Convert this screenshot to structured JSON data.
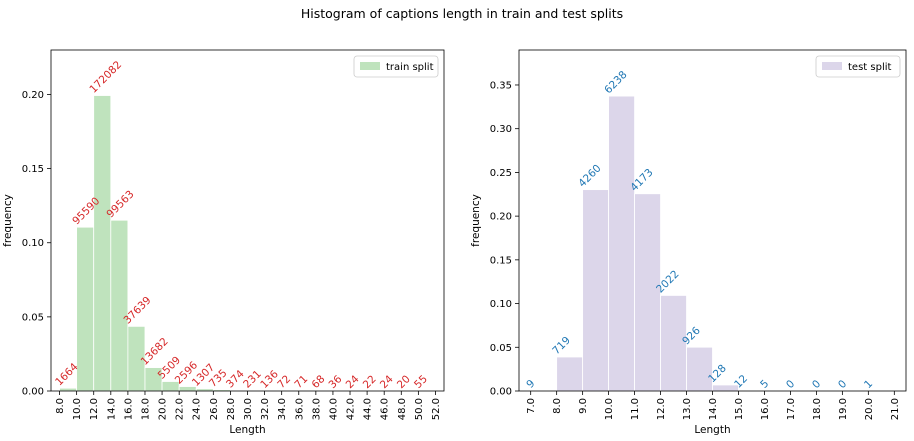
{
  "figure": {
    "title": "Histogram of captions length in train and test splits"
  },
  "chart_data": [
    {
      "type": "bar",
      "title": "",
      "xlabel": "Length",
      "ylabel": "frequency",
      "legend": {
        "label": "train split",
        "placement": "top-right"
      },
      "bar_color": "#bfe3bd",
      "label_color": "#d62728",
      "xlim": [
        7.0,
        53.0
      ],
      "ylim": [
        0,
        0.23
      ],
      "yticks": [
        0.0,
        0.05,
        0.1,
        0.15,
        0.2
      ],
      "ytick_labels": [
        "0.00",
        "0.05",
        "0.10",
        "0.15",
        "0.20"
      ],
      "xticks": [
        8,
        10,
        12,
        14,
        16,
        18,
        20,
        22,
        24,
        26,
        28,
        30,
        32,
        34,
        36,
        38,
        40,
        42,
        44,
        46,
        48,
        50,
        52
      ],
      "xtick_labels": [
        "8.0",
        "10.0",
        "12.0",
        "14.0",
        "16.0",
        "18.0",
        "20.0",
        "22.0",
        "24.0",
        "26.0",
        "28.0",
        "30.0",
        "32.0",
        "34.0",
        "36.0",
        "38.0",
        "40.0",
        "42.0",
        "44.0",
        "46.0",
        "48.0",
        "50.0",
        "52.0"
      ],
      "bin_edges": [
        8,
        10,
        12,
        14,
        16,
        18,
        20,
        22,
        24,
        26,
        28,
        30,
        32,
        34,
        36,
        38,
        40,
        42,
        44,
        46,
        48,
        50,
        52
      ],
      "values": [
        0.0019,
        0.1105,
        0.1993,
        0.1152,
        0.0436,
        0.0158,
        0.0064,
        0.003,
        0.0015,
        0.0009,
        0.0004,
        0.0003,
        0.0002,
        0.0001,
        0.0001,
        0.0001,
        0.0,
        0.0,
        0.0,
        0.0,
        0.0,
        0.0001
      ],
      "counts": [
        "1664",
        "95590",
        "172082",
        "99563",
        "37639",
        "13682",
        "5509",
        "2596",
        "1307",
        "735",
        "374",
        "231",
        "136",
        "72",
        "71",
        "68",
        "36",
        "24",
        "22",
        "24",
        "20",
        "55"
      ]
    },
    {
      "type": "bar",
      "title": "",
      "xlabel": "Length",
      "ylabel": "frequency",
      "legend": {
        "label": "test split",
        "placement": "top-right"
      },
      "bar_color": "#dcd6ea",
      "label_color": "#1f77b4",
      "xlim": [
        6.55,
        21.45
      ],
      "ylim": [
        0,
        0.39
      ],
      "yticks": [
        0.0,
        0.05,
        0.1,
        0.15,
        0.2,
        0.25,
        0.3,
        0.35
      ],
      "ytick_labels": [
        "0.00",
        "0.05",
        "0.10",
        "0.15",
        "0.20",
        "0.25",
        "0.30",
        "0.35"
      ],
      "xticks": [
        7,
        8,
        9,
        10,
        11,
        12,
        13,
        14,
        15,
        16,
        17,
        18,
        19,
        20,
        21
      ],
      "xtick_labels": [
        "7.0",
        "8.0",
        "9.0",
        "10.0",
        "11.0",
        "12.0",
        "13.0",
        "14.0",
        "15.0",
        "16.0",
        "17.0",
        "18.0",
        "19.0",
        "20.0",
        "21.0"
      ],
      "bin_edges": [
        7,
        8,
        9,
        10,
        11,
        12,
        13,
        14,
        15,
        16,
        17,
        18,
        19,
        20,
        21
      ],
      "values": [
        0.0005,
        0.0389,
        0.2303,
        0.3373,
        0.2256,
        0.1093,
        0.0501,
        0.0069,
        0.0006,
        0.0003,
        0.0,
        0.0,
        0.0,
        0.0001
      ],
      "counts": [
        "9",
        "719",
        "4260",
        "6238",
        "4173",
        "2022",
        "926",
        "128",
        "12",
        "5",
        "0",
        "0",
        "0",
        "1"
      ]
    }
  ]
}
